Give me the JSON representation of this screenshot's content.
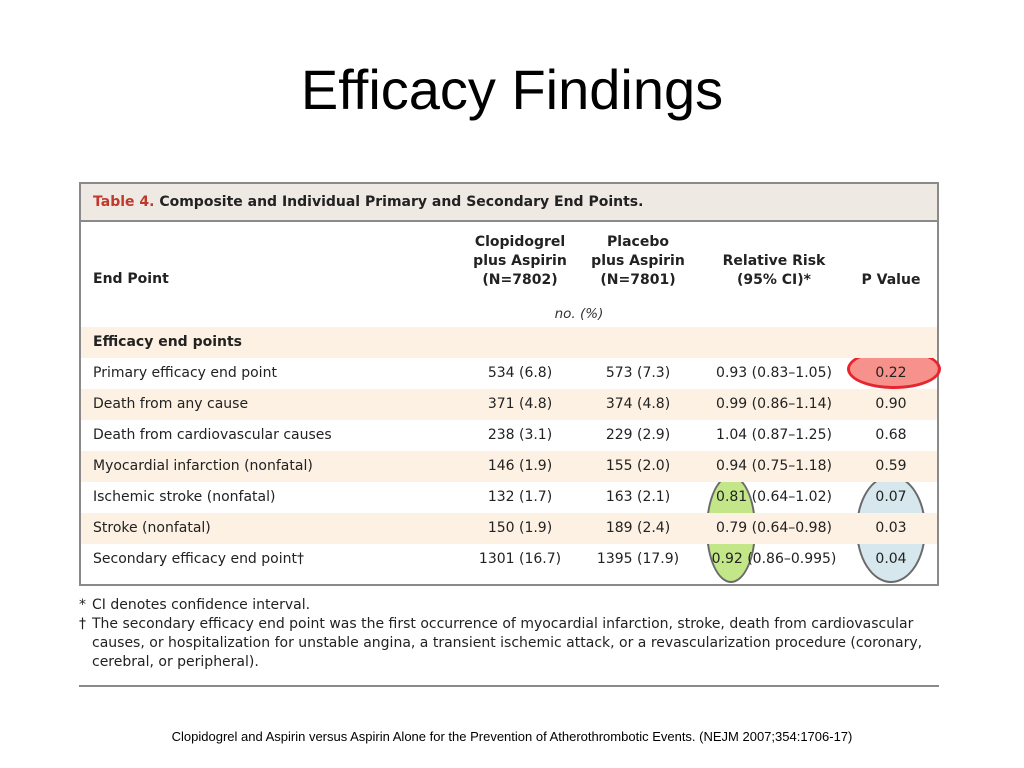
{
  "slide": {
    "title": "Efficacy Findings",
    "source": "Clopidogrel and Aspirin versus Aspirin Alone for the Prevention of Atherothrombotic Events.  (NEJM 2007;354:1706-17)"
  },
  "table": {
    "caption_label": "Table 4.",
    "caption_text": " Composite and Individual Primary and Secondary End Points.",
    "headers": {
      "endpoint": "End Point",
      "clopidogrel": "Clopidogrel\nplus Aspirin\n(N=7802)",
      "placebo": "Placebo\nplus Aspirin\n(N=7801)",
      "relative_risk": "Relative Risk\n(95% CI)*",
      "p_value": "P Value"
    },
    "units": "no. (%)",
    "section_label": "Efficacy end points",
    "rows": [
      {
        "endpoint": "Primary efficacy end point",
        "clopidogrel": "534 (6.8)",
        "placebo": "573 (7.3)",
        "rr": "0.93 (0.83–1.05)",
        "p": "0.22"
      },
      {
        "endpoint": "Death from any cause",
        "clopidogrel": "371 (4.8)",
        "placebo": "374 (4.8)",
        "rr": "0.99 (0.86–1.14)",
        "p": "0.90"
      },
      {
        "endpoint": "Death from cardiovascular causes",
        "clopidogrel": "238 (3.1)",
        "placebo": "229 (2.9)",
        "rr": "1.04 (0.87–1.25)",
        "p": "0.68"
      },
      {
        "endpoint": "Myocardial infarction (nonfatal)",
        "clopidogrel": "146 (1.9)",
        "placebo": "155 (2.0)",
        "rr": "0.94 (0.75–1.18)",
        "p": "0.59"
      },
      {
        "endpoint": "Ischemic stroke (nonfatal)",
        "clopidogrel": "132 (1.7)",
        "placebo": "163 (2.1)",
        "rr": "0.81 (0.64–1.02)",
        "p": "0.07"
      },
      {
        "endpoint": "Stroke (nonfatal)",
        "clopidogrel": "150 (1.9)",
        "placebo": "189 (2.4)",
        "rr": "0.79 (0.64–0.98)",
        "p": "0.03"
      },
      {
        "endpoint": "Secondary efficacy end point†",
        "clopidogrel": "1301 (16.7)",
        "placebo": "1395 (17.9)",
        "rr": "0.92 (0.86–0.995)",
        "p": "0.04"
      }
    ]
  },
  "footnotes": [
    {
      "mark": "*",
      "text": "CI denotes confidence interval."
    },
    {
      "mark": "†",
      "text": "The secondary efficacy end point was the first occurrence of myocardial infarction, stroke, death from cardiovascular causes, or hospitalization for unstable angina, a transient ischemic attack, or a revascularization procedure (coronary, cerebral, or peripheral)."
    }
  ],
  "highlights": {
    "red_color": "#e8252e",
    "green_color": "#aadc5a",
    "blue_color": "#c8dee8"
  }
}
